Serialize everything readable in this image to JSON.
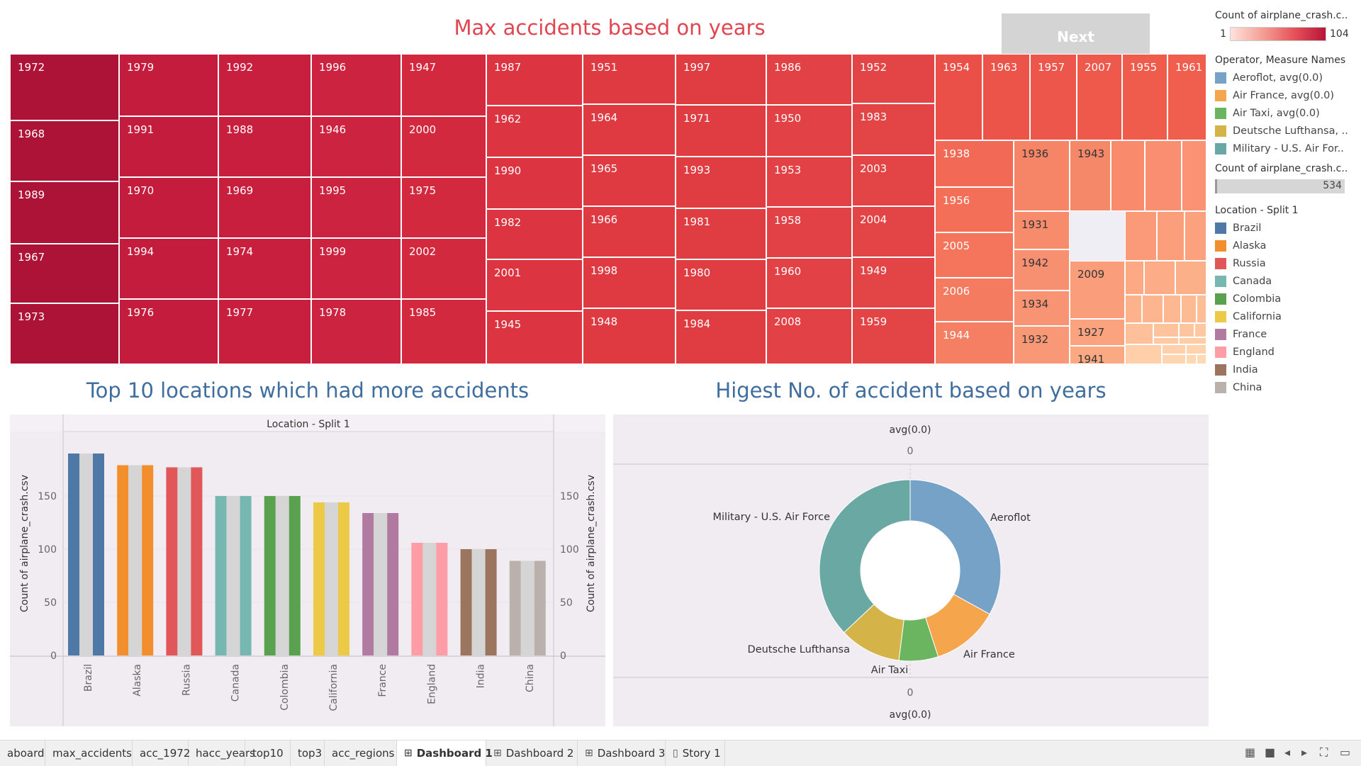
{
  "treemap": {
    "title": "Max accidents based on years",
    "cells": [
      {
        "label": "1972"
      },
      {
        "label": "1968"
      },
      {
        "label": "1989"
      },
      {
        "label": "1967"
      },
      {
        "label": "1973"
      },
      {
        "label": "1979"
      },
      {
        "label": "1991"
      },
      {
        "label": "1970"
      },
      {
        "label": "1994"
      },
      {
        "label": "1976"
      },
      {
        "label": "1992"
      },
      {
        "label": "1988"
      },
      {
        "label": "1969"
      },
      {
        "label": "1974"
      },
      {
        "label": "1977"
      },
      {
        "label": "1996"
      },
      {
        "label": "1946"
      },
      {
        "label": "1995"
      },
      {
        "label": "1999"
      },
      {
        "label": "1978"
      },
      {
        "label": "1947"
      },
      {
        "label": "2000"
      },
      {
        "label": "1975"
      },
      {
        "label": "2002"
      },
      {
        "label": "1985"
      },
      {
        "label": "1987"
      },
      {
        "label": "1962"
      },
      {
        "label": "1990"
      },
      {
        "label": "1982"
      },
      {
        "label": "2001"
      },
      {
        "label": "1945"
      },
      {
        "label": "1951"
      },
      {
        "label": "1964"
      },
      {
        "label": "1965"
      },
      {
        "label": "1966"
      },
      {
        "label": "1998"
      },
      {
        "label": "1948"
      },
      {
        "label": "1997"
      },
      {
        "label": "1971"
      },
      {
        "label": "1993"
      },
      {
        "label": "1981"
      },
      {
        "label": "1980"
      },
      {
        "label": "1984"
      },
      {
        "label": "1986"
      },
      {
        "label": "1950"
      },
      {
        "label": "1953"
      },
      {
        "label": "1958"
      },
      {
        "label": "1960"
      },
      {
        "label": "2008"
      },
      {
        "label": "1952"
      },
      {
        "label": "1983"
      },
      {
        "label": "2003"
      },
      {
        "label": "2004"
      },
      {
        "label": "1949"
      },
      {
        "label": "1959"
      },
      {
        "label": "1954"
      },
      {
        "label": "1963"
      },
      {
        "label": "1957"
      },
      {
        "label": "2007"
      },
      {
        "label": "1955"
      },
      {
        "label": "1961"
      },
      {
        "label": "1938"
      },
      {
        "label": "1956"
      },
      {
        "label": "2005"
      },
      {
        "label": "2006"
      },
      {
        "label": "1944"
      },
      {
        "label": "1936"
      },
      {
        "label": "1943"
      },
      {
        "label": "1931"
      },
      {
        "label": "1942"
      },
      {
        "label": "1934"
      },
      {
        "label": "1932"
      },
      {
        "label": "2009"
      },
      {
        "label": "1927"
      },
      {
        "label": "1941"
      }
    ]
  },
  "next_button": "Next",
  "bar_chart": {
    "title": "Top 10 locations which had more accidents",
    "header": "Location - Split 1",
    "ylabel": "Count of airplane_crash.csv",
    "ylabel_right": "Count of airplane_crash.csv",
    "yticks": [
      "0",
      "50",
      "100",
      "150"
    ]
  },
  "donut": {
    "title": "Higest No. of accident based on years",
    "top_header": "avg(0.0)",
    "top_value": "0",
    "bottom_value": "0",
    "bottom_header": "avg(0.0)"
  },
  "chart_data": [
    {
      "type": "bar",
      "title": "Top 10 locations which had more accidents",
      "xlabel": "Location - Split 1",
      "ylabel": "Count of airplane_crash.csv",
      "ylim": [
        0,
        200
      ],
      "categories": [
        "Brazil",
        "Alaska",
        "Russia",
        "Canada",
        "Colombia",
        "California",
        "France",
        "England",
        "India",
        "China"
      ],
      "values": [
        190,
        179,
        177,
        150,
        150,
        144,
        134,
        106,
        100,
        89
      ],
      "colors": [
        "#4e79a7",
        "#f28e2b",
        "#e15759",
        "#76b7b2",
        "#59a14f",
        "#edc948",
        "#b07aa1",
        "#ff9da7",
        "#9c755f",
        "#bab0ac"
      ]
    },
    {
      "type": "pie",
      "title": "Higest No. of accident based on years",
      "slices": [
        {
          "label": "Aeroflot",
          "value": 33,
          "color": "#76a2c8"
        },
        {
          "label": "Air France",
          "value": 12,
          "color": "#f5a54b"
        },
        {
          "label": "Air Taxi",
          "value": 7,
          "color": "#6bb561"
        },
        {
          "label": "Deutsche Lufthansa",
          "value": 11,
          "color": "#d4b448"
        },
        {
          "label": "Military - U.S. Air Force",
          "value": 37,
          "color": "#6aa9a3"
        }
      ]
    }
  ],
  "legends": {
    "count_title": "Count of airplane_crash.c..",
    "count_min": "1",
    "count_max": "104",
    "operator_title": "Operator, Measure Names",
    "operators": [
      {
        "label": "Aeroflot, avg(0.0)",
        "color": "#76a2c8"
      },
      {
        "label": "Air France, avg(0.0)",
        "color": "#f5a54b"
      },
      {
        "label": "Air Taxi, avg(0.0)",
        "color": "#6bb561"
      },
      {
        "label": "Deutsche Lufthansa, ..",
        "color": "#d4b448"
      },
      {
        "label": "Military - U.S. Air For..",
        "color": "#6aa9a3"
      }
    ],
    "count2_title": "Count of airplane_crash.c..",
    "count2_value": "534",
    "location_title": "Location - Split 1",
    "locations": [
      {
        "label": "Brazil",
        "color": "#4e79a7"
      },
      {
        "label": "Alaska",
        "color": "#f28e2b"
      },
      {
        "label": "Russia",
        "color": "#e15759"
      },
      {
        "label": "Canada",
        "color": "#76b7b2"
      },
      {
        "label": "Colombia",
        "color": "#59a14f"
      },
      {
        "label": "California",
        "color": "#edc948"
      },
      {
        "label": "France",
        "color": "#b07aa1"
      },
      {
        "label": "England",
        "color": "#ff9da7"
      },
      {
        "label": "India",
        "color": "#9c755f"
      },
      {
        "label": "China",
        "color": "#bab0ac"
      }
    ]
  },
  "tabs": [
    {
      "label": "aboard",
      "icon": ""
    },
    {
      "label": "max_accidents",
      "icon": ""
    },
    {
      "label": "acc_1972",
      "icon": ""
    },
    {
      "label": "hacc_years",
      "icon": ""
    },
    {
      "label": "top10",
      "icon": ""
    },
    {
      "label": "top3",
      "icon": ""
    },
    {
      "label": "acc_regions",
      "icon": ""
    },
    {
      "label": "Dashboard 1",
      "icon": "⊞"
    },
    {
      "label": "Dashboard 2",
      "icon": "⊞"
    },
    {
      "label": "Dashboard 3",
      "icon": "⊞"
    },
    {
      "label": "Story 1",
      "icon": "▯"
    }
  ],
  "active_tab": "Dashboard 1"
}
